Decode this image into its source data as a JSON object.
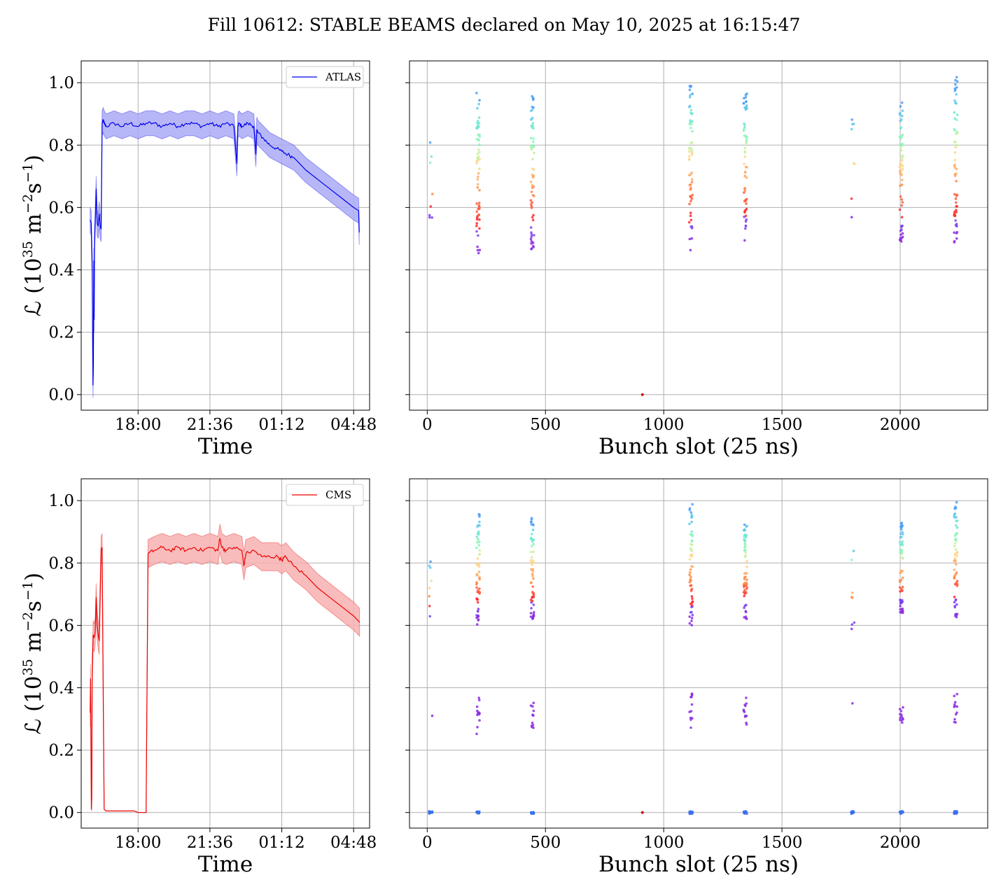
{
  "figure": {
    "title": "Fill 10612: STABLE BEAMS declared on May 10, 2025 at 16:15:47"
  },
  "colors": {
    "atlas_line": "#0000ee",
    "atlas_band": "#aaaaf6",
    "cms_line": "#ee0000",
    "cms_band": "#f7b0b0",
    "grid": "#b0b0b0"
  },
  "chart_data": [
    {
      "id": "atlas-time",
      "type": "area",
      "xlabel": "Time",
      "ylabel_prefix": "ℒ (10",
      "ylabel_exp1": "35",
      "ylabel_mid": " m",
      "ylabel_exp2": "−2",
      "ylabel_mid2": "s",
      "ylabel_exp3": "−1",
      "ylabel_suffix": ")",
      "xlim_hours": [
        15.15,
        29.6
      ],
      "ylim": [
        -0.05,
        1.07
      ],
      "xticks": [
        "18:00",
        "21:36",
        "01:12",
        "04:48"
      ],
      "yticks": [
        "0.0",
        "0.2",
        "0.4",
        "0.6",
        "0.8",
        "1.0"
      ],
      "legend": "ATLAS",
      "legend_position": "top-right",
      "grid": true,
      "x_hours": [
        15.6,
        15.65,
        15.7,
        15.74,
        15.76,
        15.78,
        15.8,
        15.82,
        15.85,
        15.9,
        15.95,
        16.0,
        16.05,
        16.1,
        16.15,
        16.2,
        16.25,
        16.3,
        16.4,
        16.8,
        17.2,
        17.6,
        18.0,
        18.4,
        18.8,
        19.2,
        19.6,
        20.0,
        20.4,
        20.8,
        21.2,
        21.6,
        22.0,
        22.4,
        22.8,
        22.95,
        23.0,
        23.05,
        23.2,
        23.5,
        23.8,
        23.9,
        23.95,
        24.0,
        24.3,
        24.6,
        24.9,
        25.2,
        25.5,
        25.8,
        26.4,
        27.0,
        27.6,
        28.2,
        28.8,
        29.05,
        29.08
      ],
      "values": [
        0.56,
        0.55,
        0.41,
        0.03,
        0.1,
        0.43,
        0.24,
        0.5,
        0.55,
        0.66,
        0.55,
        0.54,
        0.58,
        0.54,
        0.53,
        0.87,
        0.88,
        0.87,
        0.86,
        0.87,
        0.86,
        0.87,
        0.86,
        0.87,
        0.87,
        0.86,
        0.87,
        0.86,
        0.87,
        0.87,
        0.86,
        0.87,
        0.86,
        0.87,
        0.86,
        0.74,
        0.86,
        0.87,
        0.86,
        0.87,
        0.86,
        0.77,
        0.85,
        0.84,
        0.82,
        0.8,
        0.79,
        0.78,
        0.77,
        0.76,
        0.72,
        0.69,
        0.66,
        0.63,
        0.6,
        0.59,
        0.52
      ],
      "band_halfwidth": 0.04
    },
    {
      "id": "atlas-bunch",
      "type": "scatter",
      "xlabel": "Bunch slot (25 ns)",
      "xlim": [
        -75,
        2370
      ],
      "ylim": [
        -0.05,
        1.07
      ],
      "xticks": [
        "0",
        "500",
        "1000",
        "1500",
        "2000"
      ],
      "grid": true,
      "trains": [
        {
          "x": 15,
          "ymin": 0.54,
          "ymax": 0.83,
          "n": 8
        },
        {
          "x": 215,
          "ymin": 0.44,
          "ymax": 0.98,
          "n": 60
        },
        {
          "x": 445,
          "ymin": 0.46,
          "ymax": 0.96,
          "n": 60
        },
        {
          "x": 1115,
          "ymin": 0.46,
          "ymax": 1.01,
          "n": 60
        },
        {
          "x": 1345,
          "ymin": 0.49,
          "ymax": 0.97,
          "n": 60
        },
        {
          "x": 1800,
          "ymin": 0.54,
          "ymax": 0.91,
          "n": 8
        },
        {
          "x": 2005,
          "ymin": 0.49,
          "ymax": 0.95,
          "n": 60
        },
        {
          "x": 2235,
          "ymin": 0.48,
          "ymax": 1.02,
          "n": 60
        }
      ],
      "isolated": [
        {
          "x": 910,
          "y": 0.0
        }
      ]
    },
    {
      "id": "cms-time",
      "type": "area",
      "xlabel": "Time",
      "ylabel_prefix": "ℒ (10",
      "ylabel_exp1": "35",
      "ylabel_mid": " m",
      "ylabel_exp2": "−2",
      "ylabel_mid2": "s",
      "ylabel_exp3": "−1",
      "ylabel_suffix": ")",
      "xlim_hours": [
        15.15,
        29.6
      ],
      "ylim": [
        -0.05,
        1.07
      ],
      "xticks": [
        "18:00",
        "21:36",
        "01:12",
        "04:48"
      ],
      "yticks": [
        "0.0",
        "0.2",
        "0.4",
        "0.6",
        "0.8",
        "1.0"
      ],
      "legend": "CMS",
      "legend_position": "top-right",
      "grid": true,
      "x_hours": [
        15.6,
        15.62,
        15.64,
        15.66,
        15.68,
        15.7,
        15.75,
        15.8,
        15.85,
        15.9,
        15.95,
        16.0,
        16.05,
        16.1,
        16.15,
        16.2,
        16.25,
        16.3,
        16.4,
        16.6,
        17.0,
        17.5,
        17.8,
        18.0,
        18.2,
        18.35,
        18.4,
        18.5,
        18.8,
        19.2,
        19.6,
        20.0,
        20.4,
        20.8,
        21.2,
        21.6,
        22.0,
        22.1,
        22.2,
        22.4,
        22.8,
        23.2,
        23.3,
        23.4,
        23.8,
        24.2,
        24.6,
        25.0,
        25.2,
        25.4,
        25.8,
        26.4,
        27.0,
        27.6,
        28.2,
        28.8,
        29.1
      ],
      "values": [
        0.32,
        0.43,
        0.2,
        0.01,
        0.05,
        0.45,
        0.57,
        0.56,
        0.58,
        0.69,
        0.6,
        0.57,
        0.55,
        0.7,
        0.84,
        0.85,
        0.4,
        0.01,
        0.005,
        0.005,
        0.005,
        0.005,
        0.005,
        0.0,
        0.0,
        0.0,
        0.0,
        0.83,
        0.84,
        0.85,
        0.84,
        0.85,
        0.84,
        0.85,
        0.84,
        0.85,
        0.84,
        0.88,
        0.85,
        0.84,
        0.85,
        0.84,
        0.79,
        0.83,
        0.84,
        0.82,
        0.82,
        0.82,
        0.81,
        0.82,
        0.79,
        0.76,
        0.72,
        0.69,
        0.66,
        0.63,
        0.61
      ],
      "band_halfwidth": 0.045
    },
    {
      "id": "cms-bunch",
      "type": "scatter",
      "xlabel": "Bunch slot (25 ns)",
      "xlim": [
        -75,
        2370
      ],
      "ylim": [
        -0.05,
        1.07
      ],
      "xticks": [
        "0",
        "500",
        "1000",
        "1500",
        "2000"
      ],
      "grid": true,
      "trains": [
        {
          "x": 15,
          "ymin": 0.61,
          "ymax": 0.82,
          "n": 8
        },
        {
          "x": 215,
          "ymin": 0.6,
          "ymax": 0.97,
          "n": 60
        },
        {
          "x": 445,
          "ymin": 0.62,
          "ymax": 0.95,
          "n": 60
        },
        {
          "x": 1115,
          "ymin": 0.6,
          "ymax": 0.99,
          "n": 60
        },
        {
          "x": 1345,
          "ymin": 0.62,
          "ymax": 0.95,
          "n": 60
        },
        {
          "x": 1800,
          "ymin": 0.57,
          "ymax": 0.89,
          "n": 8
        },
        {
          "x": 2005,
          "ymin": 0.64,
          "ymax": 0.93,
          "n": 60
        },
        {
          "x": 2235,
          "ymin": 0.62,
          "ymax": 1.0,
          "n": 60
        }
      ],
      "low_clusters": [
        {
          "x": 15,
          "ymin": 0.31,
          "ymax": 0.31,
          "n": 1
        },
        {
          "x": 215,
          "ymin": 0.25,
          "ymax": 0.37,
          "n": 12
        },
        {
          "x": 445,
          "ymin": 0.26,
          "ymax": 0.36,
          "n": 12
        },
        {
          "x": 1115,
          "ymin": 0.27,
          "ymax": 0.39,
          "n": 12
        },
        {
          "x": 1345,
          "ymin": 0.28,
          "ymax": 0.37,
          "n": 12
        },
        {
          "x": 1800,
          "ymin": 0.35,
          "ymax": 0.35,
          "n": 1
        },
        {
          "x": 2005,
          "ymin": 0.28,
          "ymax": 0.35,
          "n": 12
        },
        {
          "x": 2235,
          "ymin": 0.27,
          "ymax": 0.38,
          "n": 12
        }
      ],
      "zero_clusters": [
        15,
        215,
        445,
        1115,
        1345,
        1800,
        2005,
        2235
      ],
      "isolated": [
        {
          "x": 910,
          "y": 0.0
        }
      ]
    }
  ]
}
